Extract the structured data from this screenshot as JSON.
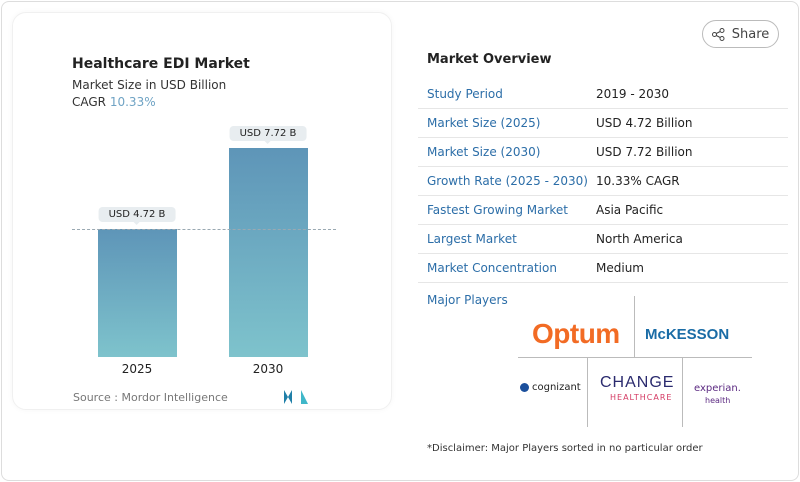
{
  "chart_data": {
    "type": "bar",
    "title": "Healthcare EDI Market",
    "subtitle": "Market Size in USD Billion",
    "cagr_label": "CAGR",
    "cagr_value": "10.33%",
    "categories": [
      "2025",
      "2030"
    ],
    "values": [
      4.72,
      7.72
    ],
    "data_labels": [
      "USD 4.72 B",
      "USD 7.72 B"
    ],
    "ylim": [
      0,
      7.72
    ],
    "grid": false,
    "colors": {
      "bar_top": "#5e95b8",
      "bar_bottom": "#7ec3cc",
      "cagr": "#6fa3c4"
    },
    "source": "Source :  Mordor Intelligence"
  },
  "share": {
    "label": "Share",
    "icon": "share-icon"
  },
  "overview": {
    "title": "Market Overview",
    "rows": [
      {
        "key": "Study Period",
        "value": "2019 - 2030"
      },
      {
        "key": "Market Size (2025)",
        "value": "USD 4.72 Billion"
      },
      {
        "key": "Market Size (2030)",
        "value": "USD 7.72 Billion"
      },
      {
        "key": "Growth Rate (2025 - 2030)",
        "value": "10.33% CAGR"
      },
      {
        "key": "Fastest Growing Market",
        "value": "Asia Pacific"
      },
      {
        "key": "Largest Market",
        "value": "North America"
      },
      {
        "key": "Market Concentration",
        "value": "Medium"
      }
    ],
    "major_players_label": "Major Players",
    "players": [
      "Optum",
      "McKESSON",
      "cognizant",
      "CHANGE",
      "HEALTHCARE",
      "experian.",
      "health"
    ],
    "disclaimer": "*Disclaimer: Major Players sorted in no particular order"
  }
}
